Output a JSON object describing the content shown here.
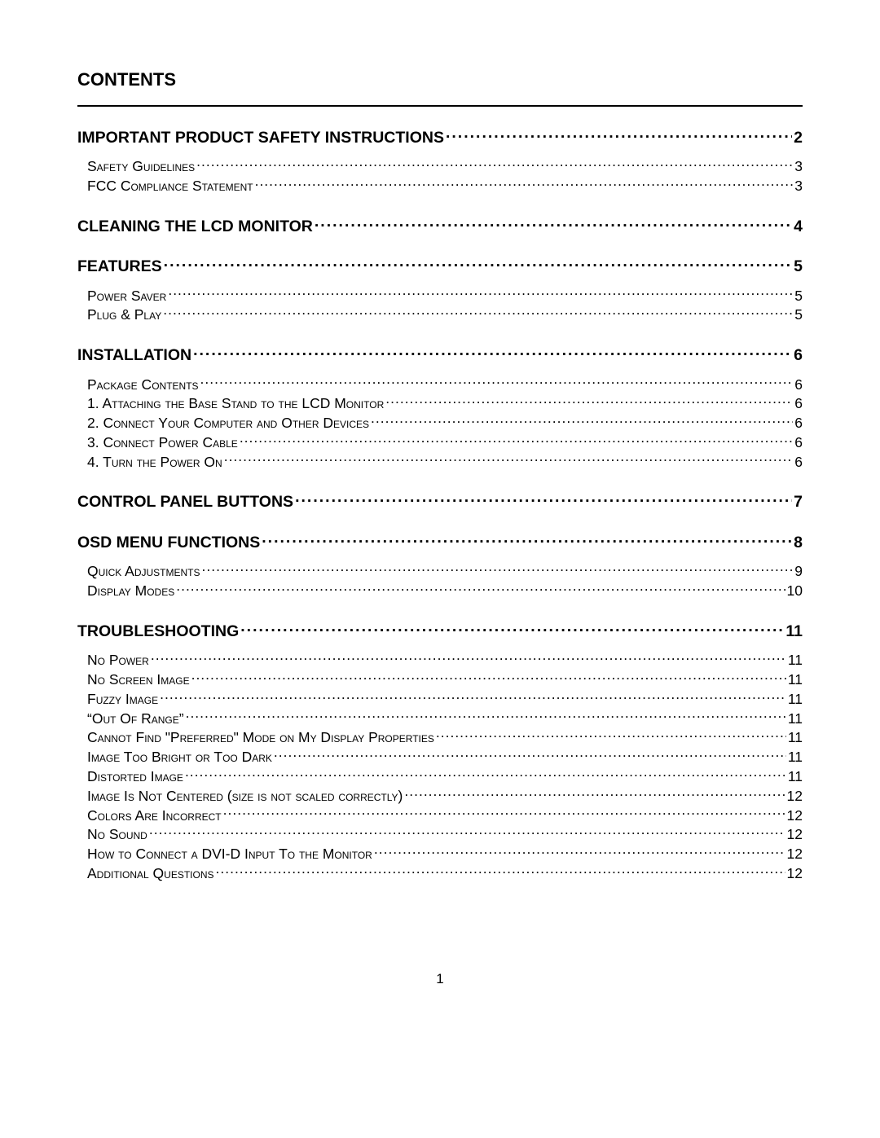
{
  "title": "CONTENTS",
  "page_number": "1",
  "entries": [
    {
      "type": "section",
      "label": "IMPORTANT PRODUCT SAFETY INSTRUCTIONS",
      "page": "2"
    },
    {
      "type": "sub",
      "label": "Safety Guidelines",
      "page": "3",
      "first": true
    },
    {
      "type": "sub",
      "label": "FCC Compliance Statement",
      "page": "3"
    },
    {
      "type": "section",
      "label": "CLEANING THE LCD MONITOR",
      "page": "4"
    },
    {
      "type": "section",
      "label": "FEATURES",
      "page": "5"
    },
    {
      "type": "sub",
      "label": "Power Saver",
      "page": "5",
      "first": true
    },
    {
      "type": "sub",
      "label": "Plug & Play",
      "page": "5"
    },
    {
      "type": "section",
      "label": "INSTALLATION",
      "page": "6"
    },
    {
      "type": "sub",
      "label": "Package Contents",
      "page": "6",
      "first": true
    },
    {
      "type": "sub",
      "label": "1. Attaching the Base Stand to the LCD Monitor",
      "page": "6"
    },
    {
      "type": "sub",
      "label": "2. Connect Your Computer and Other Devices",
      "page": "6"
    },
    {
      "type": "sub",
      "label": "3. Connect Power Cable",
      "page": "6"
    },
    {
      "type": "sub",
      "label": "4. Turn the Power On",
      "page": "6"
    },
    {
      "type": "section",
      "label": "CONTROL PANEL BUTTONS",
      "page": "7"
    },
    {
      "type": "section",
      "label": "OSD MENU FUNCTIONS",
      "page": "8"
    },
    {
      "type": "sub",
      "label": "Quick Adjustments",
      "page": "9",
      "first": true
    },
    {
      "type": "sub",
      "label": "Display Modes",
      "page": "10"
    },
    {
      "type": "section",
      "label": "TROUBLESHOOTING",
      "page": "11"
    },
    {
      "type": "sub",
      "label": "No Power",
      "page": "11",
      "first": true
    },
    {
      "type": "sub",
      "label": "No Screen Image",
      "page": "11"
    },
    {
      "type": "sub",
      "label": "Fuzzy Image",
      "page": "11"
    },
    {
      "type": "sub",
      "label": "“Out Of Range”",
      "page": "11"
    },
    {
      "type": "sub",
      "label": "Cannot Find \"Preferred\" Mode on My Display Properties",
      "page": "11"
    },
    {
      "type": "sub",
      "label": "Image Too Bright or Too Dark",
      "page": "11"
    },
    {
      "type": "sub",
      "label": "Distorted Image",
      "page": "11"
    },
    {
      "type": "sub",
      "label": "Image Is Not Centered (size is not scaled correctly)",
      "page": "12"
    },
    {
      "type": "sub",
      "label": "Colors Are Incorrect",
      "page": "12"
    },
    {
      "type": "sub",
      "label": "No Sound",
      "page": "12"
    },
    {
      "type": "sub",
      "label": "How to Connect a DVI-D Input To the Monitor",
      "page": "12"
    },
    {
      "type": "sub",
      "label": "Additional Questions",
      "page": "12"
    }
  ]
}
